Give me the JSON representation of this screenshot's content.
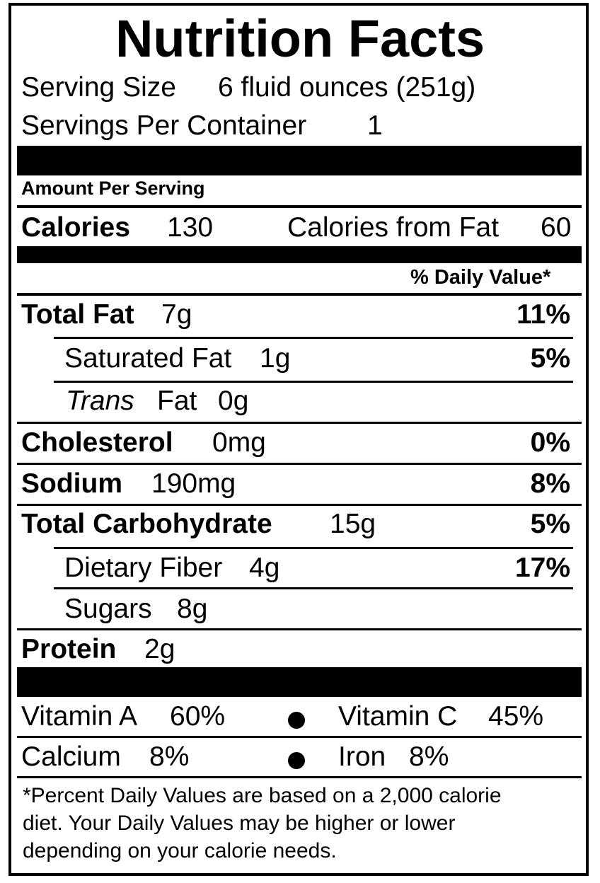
{
  "title": "Nutrition Facts",
  "serving": {
    "size_label": "Serving Size",
    "size_value": "6 fluid ounces (251g)",
    "per_container_label": "Servings Per Container",
    "per_container_value": "1"
  },
  "amount_per_serving": "Amount Per Serving",
  "calories": {
    "label": "Calories",
    "value": "130",
    "from_fat_label": "Calories from Fat",
    "from_fat_value": "60"
  },
  "daily_value_header": "% Daily Value*",
  "nutrients": {
    "total_fat": {
      "label": "Total Fat",
      "amount": "7g",
      "dv": "11%"
    },
    "saturated_fat": {
      "label": "Saturated Fat",
      "amount": "1g",
      "dv": "5%"
    },
    "trans_fat": {
      "label_italic": "Trans",
      "label": "Fat",
      "amount": "0g"
    },
    "cholesterol": {
      "label": "Cholesterol",
      "amount": "0mg",
      "dv": "0%"
    },
    "sodium": {
      "label": "Sodium",
      "amount": "190mg",
      "dv": "8%"
    },
    "total_carbohydrate": {
      "label": "Total Carbohydrate",
      "amount": "15g",
      "dv": "5%"
    },
    "dietary_fiber": {
      "label": "Dietary Fiber",
      "amount": "4g",
      "dv": "17%"
    },
    "sugars": {
      "label": "Sugars",
      "amount": "8g"
    },
    "protein": {
      "label": "Protein",
      "amount": "2g"
    }
  },
  "vitamins": {
    "vitamin_a": {
      "label": "Vitamin A",
      "value": "60%"
    },
    "vitamin_c": {
      "label": "Vitamin C",
      "value": "45%"
    },
    "calcium": {
      "label": "Calcium",
      "value": "8%"
    },
    "iron": {
      "label": "Iron",
      "value": "8%"
    }
  },
  "footnote": {
    "line1": "*Percent Daily Values are based on a 2,000 calorie",
    "line2": "diet.  Your Daily Values may be higher or lower",
    "line3": "depending on your calorie needs."
  }
}
